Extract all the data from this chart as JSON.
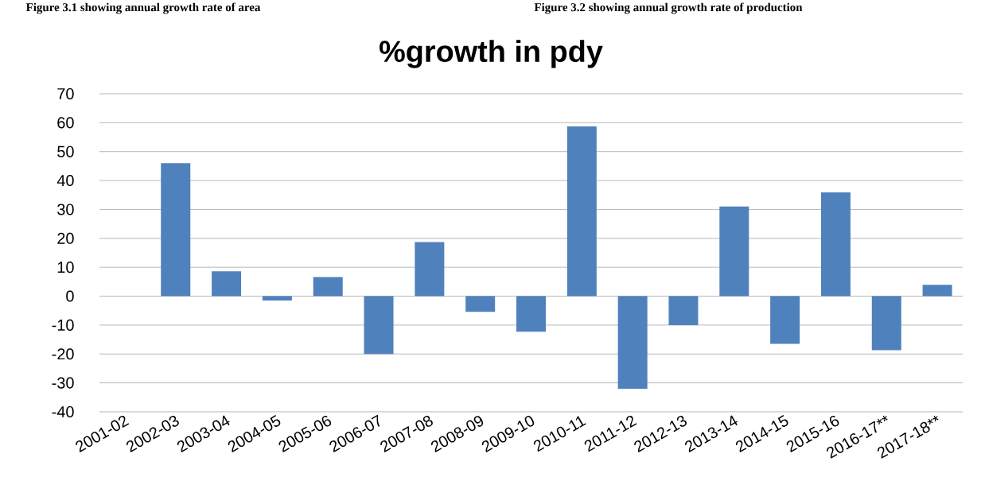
{
  "chart_data": {
    "type": "bar",
    "title": "%growth in pdy",
    "annotations": [
      "Figure 3.1 showing annual growth rate of area",
      "Figure 3.2 showing annual growth rate of production"
    ],
    "categories": [
      "2001-02",
      "2002-03",
      "2003-04",
      "2004-05",
      "2005-06",
      "2006-07",
      "2007-08",
      "2008-09",
      "2009-10",
      "2010-11",
      "2011-12",
      "2012-13",
      "2013-14",
      "2014-15",
      "2015-16",
      "2016-17**",
      "2017-18**"
    ],
    "values": [
      0,
      46,
      8.6,
      -1.5,
      6.6,
      -20,
      18.7,
      -5.4,
      -12.3,
      58.7,
      -32,
      -10,
      31,
      -16.5,
      35.9,
      -18.7,
      3.9
    ],
    "color": "#4f81bd",
    "ylim": [
      -40,
      70
    ],
    "yticks": [
      -40,
      -30,
      -20,
      -10,
      0,
      10,
      20,
      30,
      40,
      50,
      60,
      70
    ],
    "grid": "y"
  }
}
